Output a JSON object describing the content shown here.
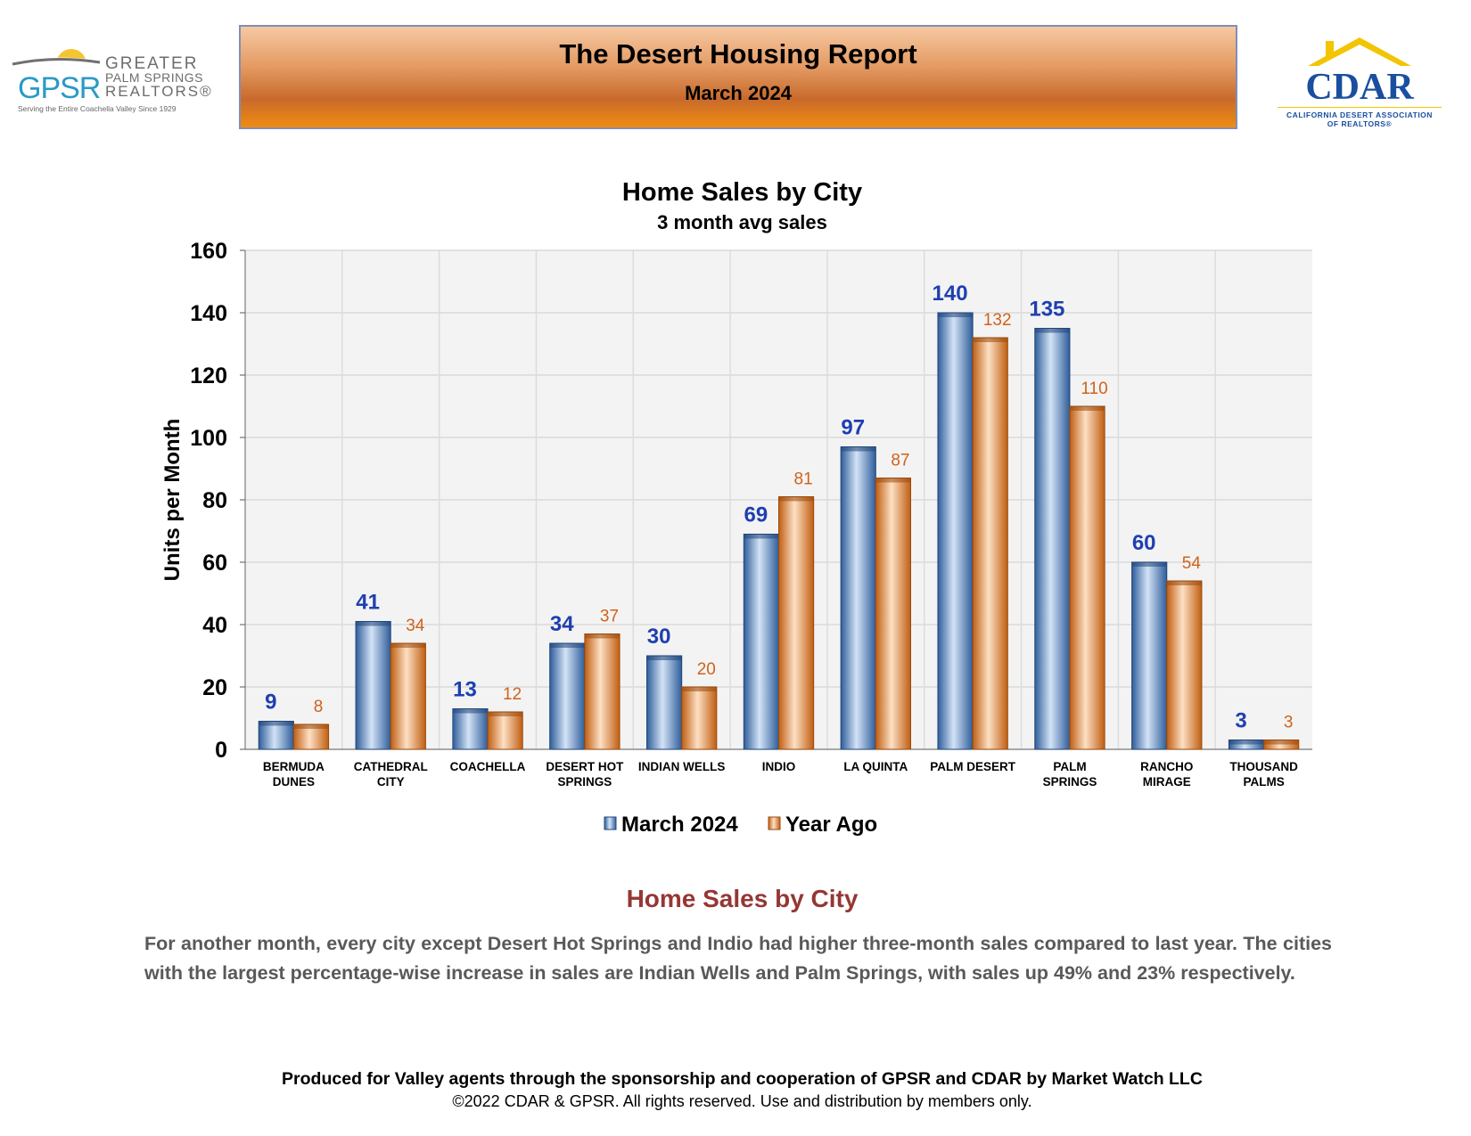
{
  "header": {
    "title": "The Desert Housing Report",
    "date": "March 2024",
    "gpsr_logo": {
      "initials": "GPSR",
      "line1": "GREATER",
      "line2": "PALM SPRINGS",
      "line3": "REALTORS®",
      "tagline": "Serving the Entire Coachella Valley Since 1929"
    },
    "cdar_logo": {
      "name": "CDAR",
      "line1": "CALIFORNIA DESERT ASSOCIATION",
      "line2": "OF REALTORS®"
    }
  },
  "chart_data": {
    "type": "bar",
    "title": "Home Sales by City",
    "subtitle": "3 month avg sales",
    "xlabel": "",
    "ylabel": "Units per Month",
    "ylim": [
      0,
      160
    ],
    "yticks": [
      0,
      20,
      40,
      60,
      80,
      100,
      120,
      140,
      160
    ],
    "grid": true,
    "legend_position": "bottom",
    "categories": [
      [
        "BERMUDA",
        "DUNES"
      ],
      [
        "CATHEDRAL",
        "CITY"
      ],
      [
        "COACHELLA"
      ],
      [
        "DESERT HOT",
        "SPRINGS"
      ],
      [
        "INDIAN WELLS"
      ],
      [
        "INDIO"
      ],
      [
        "LA QUINTA"
      ],
      [
        "PALM DESERT"
      ],
      [
        "PALM",
        "SPRINGS"
      ],
      [
        "RANCHO",
        "MIRAGE"
      ],
      [
        "THOUSAND",
        "PALMS"
      ]
    ],
    "series": [
      {
        "name": "March 2024",
        "color": "#3d72b4",
        "label_color": "#1f3fb0",
        "values": [
          9,
          41,
          13,
          34,
          30,
          69,
          97,
          140,
          135,
          60,
          3
        ]
      },
      {
        "name": "Year Ago",
        "color": "#e8843a",
        "label_color": "#d0621a",
        "values": [
          8,
          34,
          12,
          37,
          20,
          81,
          87,
          132,
          110,
          54,
          3
        ]
      }
    ]
  },
  "commentary": {
    "heading": "Home Sales by City",
    "text": "For another month, every city except Desert Hot Springs and Indio had higher three-month sales compared to last year. The cities with the largest percentage-wise increase in sales are Indian Wells and Palm Springs, with sales up 49% and 23% respectively."
  },
  "footer": {
    "credit": "Produced for Valley agents through the sponsorship and cooperation of GPSR and CDAR by Market Watch LLC",
    "copyright": "©2022 CDAR & GPSR.  All rights reserved.  Use and distribution by members only."
  }
}
